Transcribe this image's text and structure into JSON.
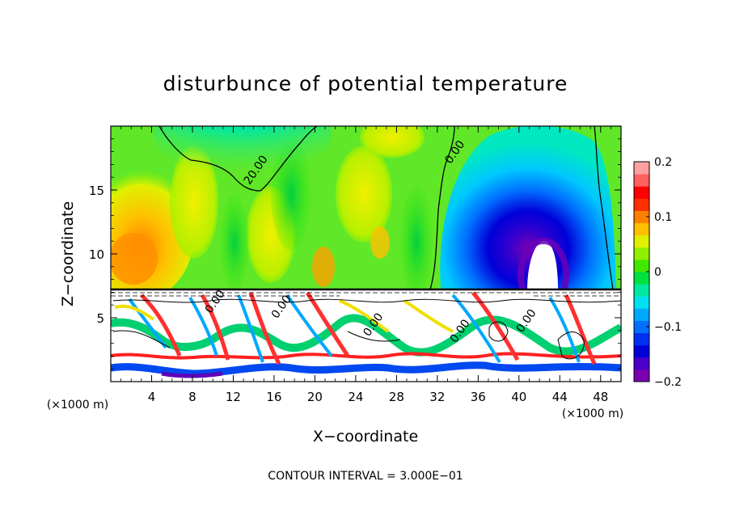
{
  "chart_data": {
    "type": "heatmap",
    "title": "disturbunce of potential temperature",
    "xlabel": "X−coordinate",
    "ylabel": "Z−coordinate",
    "x_unit_label_left": "(×1000 m)",
    "x_unit_label_right": "(×1000 m)",
    "footer": "CONTOUR INTERVAL = 3.000E−01",
    "xlim": [
      0,
      50
    ],
    "ylim": [
      0,
      20
    ],
    "x_ticks": [
      4,
      8,
      12,
      16,
      20,
      24,
      28,
      32,
      36,
      40,
      44,
      48
    ],
    "y_ticks": [
      5,
      10,
      15
    ],
    "colorbar": {
      "range": [
        -0.2,
        0.2
      ],
      "ticks": [
        {
          "value": 0.2,
          "label": "0.2"
        },
        {
          "value": 0.1,
          "label": "0.1"
        },
        {
          "value": 0,
          "label": "0"
        },
        {
          "value": -0.1,
          "label": "−0.1"
        },
        {
          "value": -0.2,
          "label": "−0.2"
        }
      ],
      "colors": [
        "#7a00b0",
        "#4a00c8",
        "#0000d8",
        "#0030f0",
        "#0070ff",
        "#00a8ff",
        "#00e0f0",
        "#00e8a0",
        "#00e040",
        "#40e800",
        "#90f000",
        "#e0f000",
        "#ffc000",
        "#ff8000",
        "#ff3000",
        "#ff0000",
        "#ff6060",
        "#ffa0a0"
      ]
    },
    "contour_labels": [
      {
        "text": "20.00",
        "x": 14.5,
        "y": 16.4
      },
      {
        "text": "0.00",
        "x": 34.0,
        "y": 17.8
      },
      {
        "text": "0.00",
        "x": 10.5,
        "y": 6.1
      },
      {
        "text": "0.00",
        "x": 17.0,
        "y": 5.7
      },
      {
        "text": "0.00",
        "x": 26.0,
        "y": 4.3
      },
      {
        "text": "0.00",
        "x": 34.5,
        "y": 3.8
      },
      {
        "text": "0.00",
        "x": 41.0,
        "y": 4.6
      }
    ]
  }
}
